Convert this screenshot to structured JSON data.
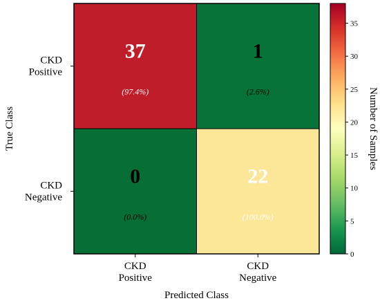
{
  "chart_data": {
    "type": "heatmap",
    "xlabel": "Predicted Class",
    "ylabel": "True Class",
    "x_categories": [
      [
        "CKD",
        "Positive"
      ],
      [
        "CKD",
        "Negative"
      ]
    ],
    "y_categories": [
      [
        "CKD",
        "Positive"
      ],
      [
        "CKD",
        "Negative"
      ]
    ],
    "values": [
      [
        37,
        1
      ],
      [
        0,
        22
      ]
    ],
    "annotations": [
      [
        "(97.4%)",
        "(2.6%)"
      ],
      [
        "(0.0%)",
        "(100.0%)"
      ]
    ],
    "colorbar": {
      "label": "Number of Samples",
      "range": [
        0,
        38
      ],
      "ticks": [
        0,
        5,
        10,
        15,
        20,
        25,
        30,
        35
      ],
      "colormap": "RdYlGn_r",
      "stops": [
        "#006837",
        "#1a9850",
        "#66bd63",
        "#a6d96a",
        "#d9ef8b",
        "#ffffbf",
        "#fee08b",
        "#fdae61",
        "#f46d43",
        "#d73027",
        "#a50026"
      ]
    },
    "colors": {
      "cell_37": "#c01d2a",
      "cell_1": "#087338",
      "cell_0": "#076e35",
      "cell_22": "#fce697"
    },
    "text_colors": [
      [
        "#ffffff",
        "#000000"
      ],
      [
        "#000000",
        "#ffffff"
      ]
    ]
  }
}
